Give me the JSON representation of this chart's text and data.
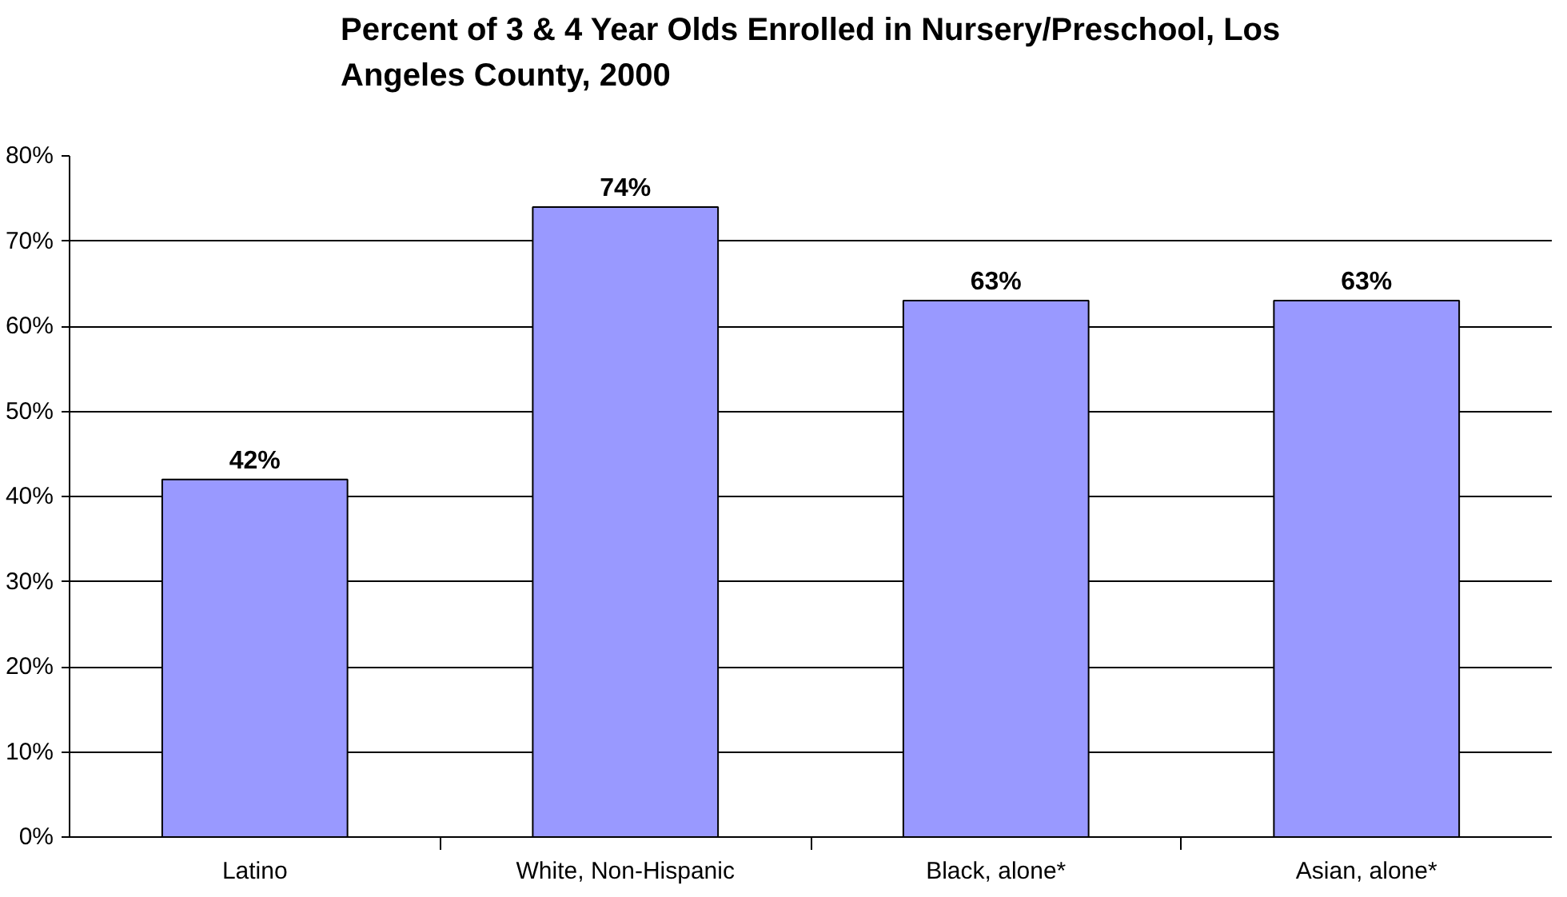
{
  "chart_data": {
    "type": "bar",
    "title": "Percent of 3 & 4 Year Olds Enrolled in Nursery/Preschool, Los Angeles County, 2000",
    "categories": [
      "Latino",
      "White, Non-Hispanic",
      "Black, alone*",
      "Asian, alone*"
    ],
    "values": [
      42,
      74,
      63,
      63
    ],
    "value_labels": [
      "42%",
      "74%",
      "63%",
      "63%"
    ],
    "color": "#9999ff",
    "ylim": [
      0,
      80
    ],
    "yticks": [
      {
        "value": 0,
        "label": "0%"
      },
      {
        "value": 10,
        "label": "10%"
      },
      {
        "value": 20,
        "label": "20%"
      },
      {
        "value": 30,
        "label": "30%"
      },
      {
        "value": 40,
        "label": "40%"
      },
      {
        "value": 50,
        "label": "50%"
      },
      {
        "value": 60,
        "label": "60%"
      },
      {
        "value": 70,
        "label": "70%"
      },
      {
        "value": 80,
        "label": "80%"
      }
    ],
    "grid": "y"
  }
}
